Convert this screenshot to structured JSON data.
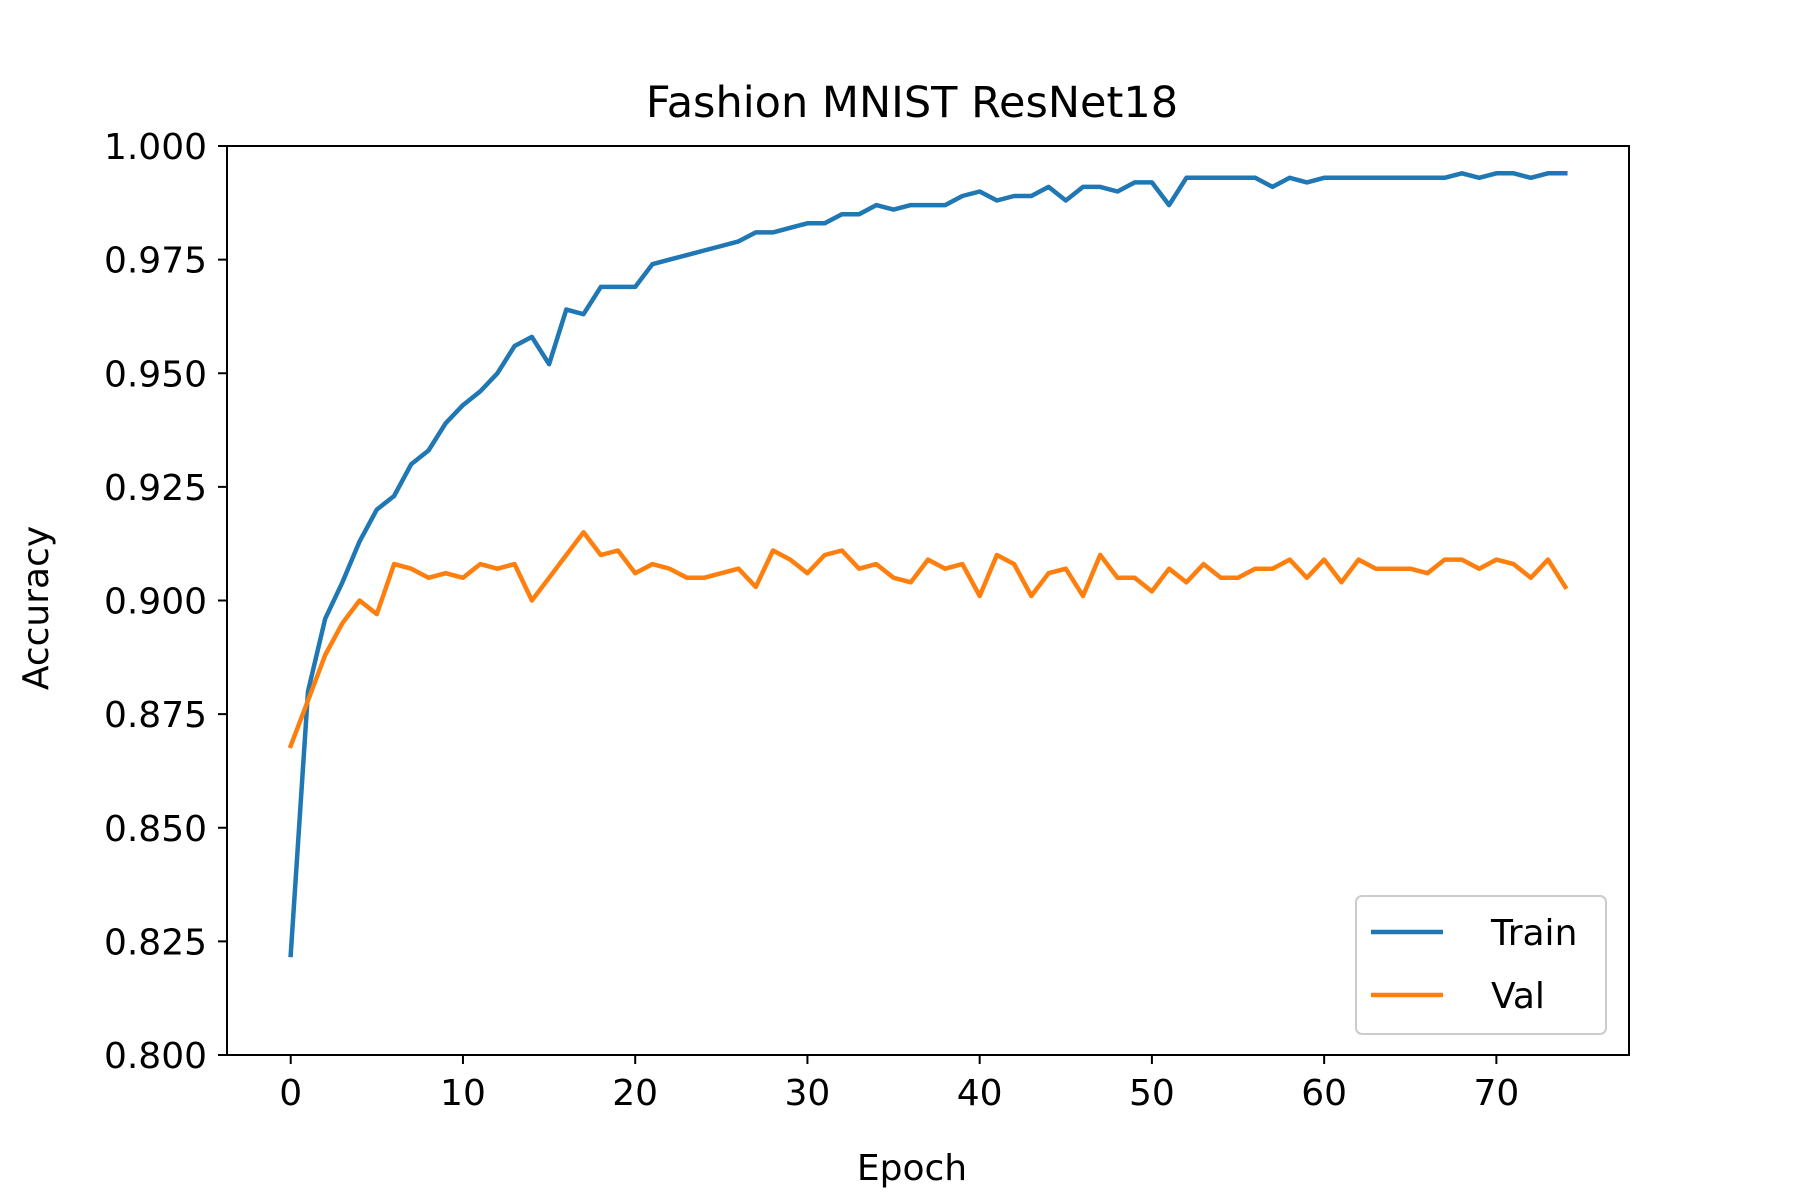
{
  "chart_data": {
    "type": "line",
    "title": "Fashion MNIST ResNet18",
    "xlabel": "Epoch",
    "ylabel": "Accuracy",
    "xlim": [
      -3.7,
      77.7
    ],
    "ylim": [
      0.8,
      1.0
    ],
    "xticks": [
      0,
      10,
      20,
      30,
      40,
      50,
      60,
      70
    ],
    "yticks": [
      0.8,
      0.825,
      0.85,
      0.875,
      0.9,
      0.925,
      0.95,
      0.975,
      1.0
    ],
    "xtick_labels": [
      "0",
      "10",
      "20",
      "30",
      "40",
      "50",
      "60",
      "70"
    ],
    "ytick_labels": [
      "0.800",
      "0.825",
      "0.850",
      "0.875",
      "0.900",
      "0.925",
      "0.950",
      "0.975",
      "1.000"
    ],
    "grid": false,
    "legend_position": "lower-right",
    "x": [
      0,
      1,
      2,
      3,
      4,
      5,
      6,
      7,
      8,
      9,
      10,
      11,
      12,
      13,
      14,
      15,
      16,
      17,
      18,
      19,
      20,
      21,
      22,
      23,
      24,
      25,
      26,
      27,
      28,
      29,
      30,
      31,
      32,
      33,
      34,
      35,
      36,
      37,
      38,
      39,
      40,
      41,
      42,
      43,
      44,
      45,
      46,
      47,
      48,
      49,
      50,
      51,
      52,
      53,
      54,
      55,
      56,
      57,
      58,
      59,
      60,
      61,
      62,
      63,
      64,
      65,
      66,
      67,
      68,
      69,
      70,
      71,
      72,
      73,
      74
    ],
    "series": [
      {
        "name": "Train",
        "color": "#1f77b4",
        "values": [
          0.822,
          0.88,
          0.896,
          0.904,
          0.913,
          0.92,
          0.923,
          0.93,
          0.933,
          0.939,
          0.943,
          0.946,
          0.95,
          0.956,
          0.958,
          0.952,
          0.964,
          0.963,
          0.969,
          0.969,
          0.969,
          0.974,
          0.975,
          0.976,
          0.977,
          0.978,
          0.979,
          0.981,
          0.981,
          0.982,
          0.983,
          0.983,
          0.985,
          0.985,
          0.987,
          0.986,
          0.987,
          0.987,
          0.987,
          0.989,
          0.99,
          0.988,
          0.989,
          0.989,
          0.991,
          0.988,
          0.991,
          0.991,
          0.99,
          0.992,
          0.992,
          0.987,
          0.993,
          0.993,
          0.993,
          0.993,
          0.993,
          0.991,
          0.993,
          0.992,
          0.993,
          0.993,
          0.993,
          0.993,
          0.993,
          0.993,
          0.993,
          0.993,
          0.994,
          0.993,
          0.994,
          0.994,
          0.993,
          0.994,
          0.994
        ]
      },
      {
        "name": "Val",
        "color": "#ff7f0e",
        "values": [
          0.868,
          0.878,
          0.888,
          0.895,
          0.9,
          0.897,
          0.908,
          0.907,
          0.905,
          0.906,
          0.905,
          0.908,
          0.907,
          0.908,
          0.9,
          0.905,
          0.91,
          0.915,
          0.91,
          0.911,
          0.906,
          0.908,
          0.907,
          0.905,
          0.905,
          0.906,
          0.907,
          0.903,
          0.911,
          0.909,
          0.906,
          0.91,
          0.911,
          0.907,
          0.908,
          0.905,
          0.904,
          0.909,
          0.907,
          0.908,
          0.901,
          0.91,
          0.908,
          0.901,
          0.906,
          0.907,
          0.901,
          0.91,
          0.905,
          0.905,
          0.902,
          0.907,
          0.904,
          0.908,
          0.905,
          0.905,
          0.907,
          0.907,
          0.909,
          0.905,
          0.909,
          0.904,
          0.909,
          0.907,
          0.907,
          0.907,
          0.906,
          0.909,
          0.909,
          0.907,
          0.909,
          0.908,
          0.905,
          0.909,
          0.903
        ]
      }
    ]
  }
}
